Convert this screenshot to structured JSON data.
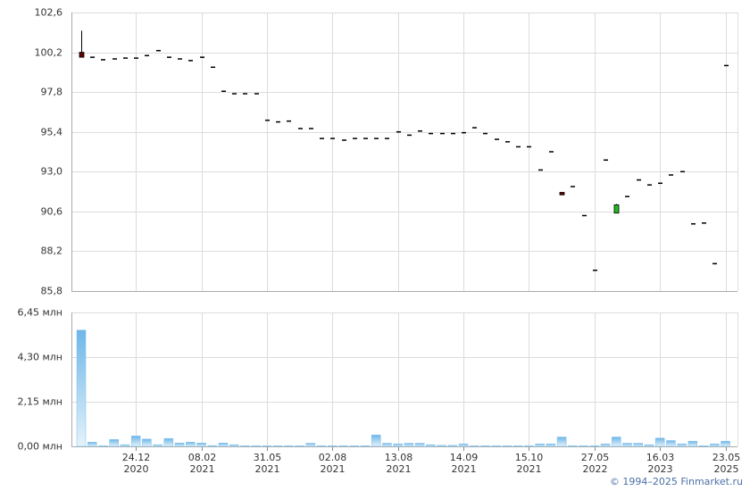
{
  "chart_data": {
    "type": "candlestick",
    "categories": [
      null,
      null,
      null,
      null,
      null,
      "24.12\n2020",
      null,
      null,
      null,
      null,
      null,
      "08.02\n2021",
      null,
      null,
      null,
      null,
      null,
      "31.05\n2021",
      null,
      null,
      null,
      null,
      null,
      "02.08\n2021",
      null,
      null,
      null,
      null,
      null,
      "13.08\n2021",
      null,
      null,
      null,
      null,
      null,
      "14.09\n2021",
      null,
      null,
      null,
      null,
      null,
      "15.10\n2021",
      null,
      null,
      null,
      null,
      null,
      "27.05\n2022",
      null,
      null,
      null,
      null,
      null,
      "16.03\n2023",
      null,
      null,
      null,
      null,
      null,
      "23.05\n2025"
    ],
    "open": [
      100.2,
      99.9,
      99.75,
      99.8,
      99.85,
      99.85,
      100.0,
      100.3,
      99.9,
      99.8,
      99.7,
      99.9,
      99.3,
      97.85,
      97.7,
      97.7,
      97.7,
      96.1,
      96.0,
      96.05,
      95.6,
      95.6,
      95.0,
      95.0,
      94.9,
      95.0,
      95.0,
      95.0,
      95.0,
      95.4,
      95.2,
      95.45,
      95.3,
      95.3,
      95.3,
      95.35,
      95.65,
      95.3,
      94.95,
      94.8,
      94.5,
      94.5,
      93.1,
      94.2,
      91.75,
      92.1,
      90.35,
      87.05,
      93.7,
      90.5,
      91.5,
      92.5,
      92.2,
      92.3,
      92.8,
      93.0,
      89.85,
      89.9,
      87.45,
      99.4
    ],
    "high": [
      101.5,
      99.9,
      99.75,
      99.8,
      99.85,
      99.85,
      100.0,
      100.3,
      99.9,
      99.8,
      99.7,
      99.9,
      99.3,
      97.85,
      97.7,
      97.7,
      97.7,
      96.1,
      96.0,
      96.05,
      95.6,
      95.6,
      95.0,
      95.0,
      94.9,
      95.0,
      95.0,
      95.0,
      95.0,
      95.4,
      95.2,
      95.45,
      95.3,
      95.3,
      95.3,
      95.35,
      95.65,
      95.3,
      94.95,
      94.8,
      94.5,
      94.5,
      93.1,
      94.2,
      91.75,
      92.1,
      90.35,
      87.05,
      93.7,
      91.05,
      91.5,
      92.5,
      92.2,
      92.3,
      92.8,
      93.0,
      89.85,
      89.9,
      87.45,
      99.4
    ],
    "low": [
      99.9,
      99.9,
      99.75,
      99.8,
      99.85,
      99.85,
      100.0,
      100.3,
      99.9,
      99.8,
      99.7,
      99.9,
      99.3,
      97.85,
      97.7,
      97.7,
      97.7,
      96.1,
      96.0,
      96.05,
      95.6,
      95.6,
      95.0,
      95.0,
      94.9,
      95.0,
      95.0,
      95.0,
      95.0,
      95.4,
      95.2,
      95.45,
      95.3,
      95.3,
      95.3,
      95.35,
      95.65,
      95.3,
      94.95,
      94.8,
      94.5,
      94.5,
      93.1,
      94.2,
      91.6,
      92.1,
      90.35,
      87.05,
      93.7,
      90.5,
      91.5,
      92.5,
      92.2,
      92.3,
      92.8,
      93.0,
      89.85,
      89.9,
      87.45,
      99.4
    ],
    "close": [
      99.9,
      99.9,
      99.75,
      99.8,
      99.85,
      99.85,
      100.0,
      100.3,
      99.9,
      99.8,
      99.7,
      99.9,
      99.3,
      97.85,
      97.7,
      97.7,
      97.7,
      96.1,
      96.0,
      96.05,
      95.6,
      95.6,
      95.0,
      95.0,
      94.9,
      95.0,
      95.0,
      95.0,
      95.0,
      95.4,
      95.2,
      95.45,
      95.3,
      95.3,
      95.3,
      95.35,
      95.65,
      95.3,
      94.95,
      94.8,
      94.5,
      94.5,
      93.1,
      94.2,
      91.6,
      92.1,
      90.35,
      87.05,
      93.7,
      91.0,
      91.5,
      92.5,
      92.2,
      92.3,
      92.8,
      93.0,
      89.85,
      89.9,
      87.45,
      99.4
    ],
    "up_color": "#22bb22",
    "down_color": "#660000",
    "ylim": [
      85.8,
      102.6
    ],
    "yticks": [
      {
        "value": 85.8,
        "label": "85,8"
      },
      {
        "value": 88.2,
        "label": "88,2"
      },
      {
        "value": 90.6,
        "label": "90,6"
      },
      {
        "value": 93.0,
        "label": "93,0"
      },
      {
        "value": 95.4,
        "label": "95,4"
      },
      {
        "value": 97.8,
        "label": "97,8"
      },
      {
        "value": 100.2,
        "label": "100,2"
      },
      {
        "value": 102.6,
        "label": "102,6"
      }
    ],
    "grid": true,
    "volume": {
      "type": "bar",
      "values": [
        5.6,
        0.2,
        0.03,
        0.33,
        0.08,
        0.5,
        0.35,
        0.08,
        0.38,
        0.16,
        0.2,
        0.16,
        0.04,
        0.16,
        0.08,
        0.03,
        0.03,
        0.03,
        0.03,
        0.03,
        0.03,
        0.15,
        0.03,
        0.03,
        0.03,
        0.03,
        0.03,
        0.55,
        0.15,
        0.12,
        0.15,
        0.15,
        0.08,
        0.05,
        0.05,
        0.12,
        0.03,
        0.03,
        0.03,
        0.03,
        0.03,
        0.03,
        0.12,
        0.12,
        0.45,
        0.03,
        0.03,
        0.03,
        0.12,
        0.45,
        0.15,
        0.15,
        0.08,
        0.4,
        0.28,
        0.12,
        0.25,
        0.03,
        0.12,
        0.25
      ],
      "color": "#7fbfea",
      "ylim": [
        0,
        6.45
      ],
      "yticks": [
        {
          "value": 0,
          "label": "0,00 млн"
        },
        {
          "value": 2.15,
          "label": "2,15 млн"
        },
        {
          "value": 4.3,
          "label": "4,30 млн"
        },
        {
          "value": 6.45,
          "label": "6,45 млн"
        }
      ]
    },
    "credit": "© 1994–2025 Finmarket.ru"
  }
}
